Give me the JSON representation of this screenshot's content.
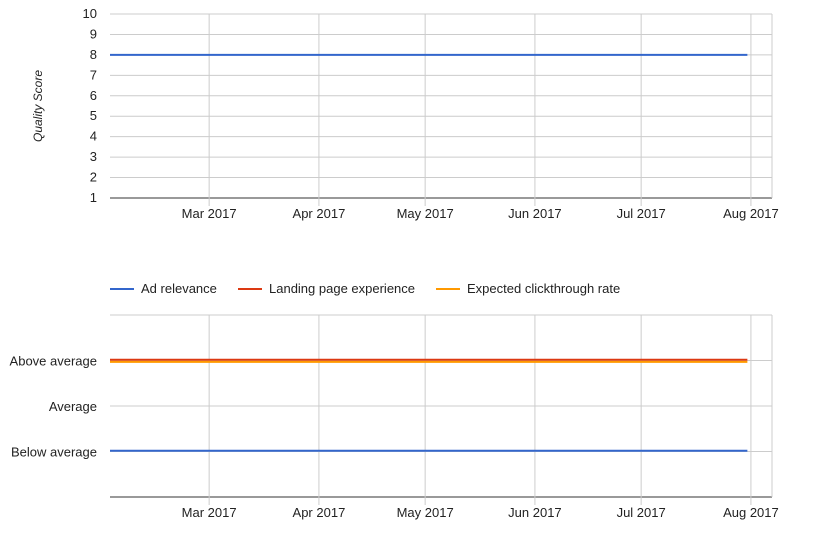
{
  "colors": {
    "grid": "#cccccc",
    "axis": "#333333",
    "ad_relevance": "#3366cc",
    "landing_page_experience": "#dc3912",
    "expected_clickthrough_rate": "#ff9900"
  },
  "chart_data": [
    {
      "type": "line",
      "title": "",
      "xlabel": "",
      "ylabel": "Quality Score",
      "ylim": [
        1,
        10
      ],
      "yticks": [
        "1",
        "2",
        "3",
        "4",
        "5",
        "6",
        "7",
        "8",
        "9",
        "10"
      ],
      "xticks": [
        "Mar 2017",
        "Apr 2017",
        "May 2017",
        "Jun 2017",
        "Jul 2017",
        "Aug 2017"
      ],
      "x_range": [
        "2017-02-01",
        "2017-08-03"
      ],
      "grid": true,
      "series": [
        {
          "x": [
            "2017-02-01",
            "2017-07-31"
          ],
          "values": [
            8,
            8
          ],
          "color": "#3366cc"
        }
      ]
    },
    {
      "type": "line",
      "title": "",
      "xlabel": "",
      "ylabel": "",
      "categories_y": [
        "Below average",
        "Average",
        "Above average"
      ],
      "yticks": [
        "Below average",
        "Average",
        "Above average"
      ],
      "xticks": [
        "Mar 2017",
        "Apr 2017",
        "May 2017",
        "Jun 2017",
        "Jul 2017",
        "Aug 2017"
      ],
      "x_range": [
        "2017-02-01",
        "2017-08-03"
      ],
      "grid": true,
      "legend_position": "top-left",
      "series": [
        {
          "name": "Ad relevance",
          "x": [
            "2017-02-01",
            "2017-07-31"
          ],
          "values": [
            "Below average",
            "Below average"
          ],
          "color": "#3366cc"
        },
        {
          "name": "Landing page experience",
          "x": [
            "2017-02-01",
            "2017-07-31"
          ],
          "values": [
            "Above average",
            "Above average"
          ],
          "color": "#dc3912"
        },
        {
          "name": "Expected clickthrough rate",
          "x": [
            "2017-02-01",
            "2017-07-31"
          ],
          "values": [
            "Above average",
            "Above average"
          ],
          "color": "#ff9900"
        }
      ]
    }
  ]
}
